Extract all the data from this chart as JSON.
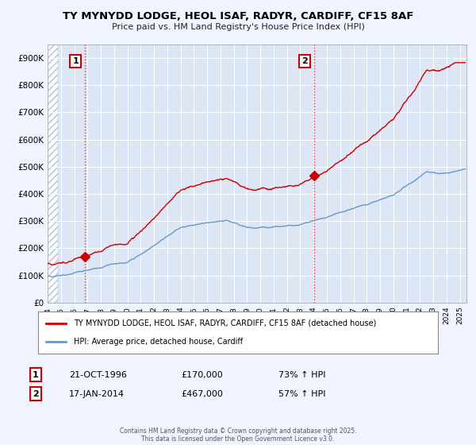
{
  "title_line1": "TY MYNYDD LODGE, HEOL ISAF, RADYR, CARDIFF, CF15 8AF",
  "title_line2": "Price paid vs. HM Land Registry's House Price Index (HPI)",
  "bg_color": "#f0f4ff",
  "plot_bg_color": "#dce6f5",
  "grid_color": "#ffffff",
  "red_line_color": "#cc0000",
  "blue_line_color": "#6699cc",
  "sale1_date": 1996.81,
  "sale1_price": 170000,
  "sale1_label": "1",
  "sale2_date": 2014.05,
  "sale2_price": 467000,
  "sale2_label": "2",
  "yticks": [
    0,
    100000,
    200000,
    300000,
    400000,
    500000,
    600000,
    700000,
    800000,
    900000
  ],
  "ytick_labels": [
    "£0",
    "£100K",
    "£200K",
    "£300K",
    "£400K",
    "£500K",
    "£600K",
    "£700K",
    "£800K",
    "£900K"
  ],
  "xmin": 1994.0,
  "xmax": 2025.5,
  "ymin": 0,
  "ymax": 950000,
  "legend_red": "TY MYNYDD LODGE, HEOL ISAF, RADYR, CARDIFF, CF15 8AF (detached house)",
  "legend_blue": "HPI: Average price, detached house, Cardiff",
  "footer": "Contains HM Land Registry data © Crown copyright and database right 2025.\nThis data is licensed under the Open Government Licence v3.0.",
  "table_row1": [
    "1",
    "21-OCT-1996",
    "£170,000",
    "73% ↑ HPI"
  ],
  "table_row2": [
    "2",
    "17-JAN-2014",
    "£467,000",
    "57% ↑ HPI"
  ]
}
